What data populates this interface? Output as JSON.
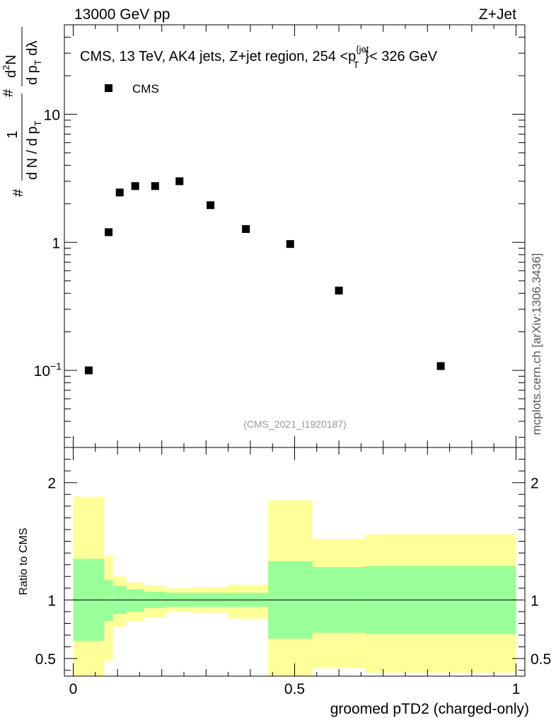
{
  "header": {
    "left": "13000 GeV pp",
    "right": "Z+Jet",
    "side_text": "mcplots.cern.ch [arXiv:1306.3436]"
  },
  "chart_data": [
    {
      "type": "scatter",
      "title": "CMS, 13 TeV, AK4 jets, Z+jet region, 254 <p_T^{jet}< 326 GeV",
      "title_parts": {
        "before": "CMS, 13 TeV, AK4 jets, Z+jet region, 254 <p",
        "sup": "{jet",
        "sub": "T",
        "after": "}< 326 GeV"
      },
      "ylabel_parts": {
        "lhs_numerator": "1",
        "lhs_denominator": "d N / d p",
        "lhs_sub": "T",
        "lhs_hash": "#",
        "hash2": "#",
        "rhs_numerator": "d",
        "rhs_numerator_sup": "2",
        "rhs_numerator_tail": "N",
        "rhs_denominator": "d p",
        "rhs_sub": "T",
        "rhs_tail": " dλ"
      },
      "yscale": "log",
      "ylim": [
        0.025,
        50
      ],
      "xlim": [
        -0.02,
        1.02
      ],
      "ytick_labels": [
        {
          "value": 0.1,
          "base": "10",
          "exp": "−1"
        },
        {
          "value": 1,
          "base": "1",
          "exp": ""
        },
        {
          "value": 10,
          "base": "10",
          "exp": ""
        }
      ],
      "annotation": "(CMS_2021_I1920187)",
      "legend": {
        "placement": "top-left",
        "entries": [
          "CMS"
        ]
      },
      "series": [
        {
          "name": "CMS",
          "color": "#000000",
          "x": [
            0.035,
            0.08,
            0.105,
            0.14,
            0.185,
            0.24,
            0.31,
            0.39,
            0.49,
            0.6,
            0.83
          ],
          "y": [
            0.1,
            1.2,
            2.45,
            2.75,
            2.75,
            3.0,
            1.95,
            1.27,
            0.97,
            0.42,
            0.108
          ]
        }
      ]
    },
    {
      "type": "area",
      "ylabel": "Ratio to CMS",
      "xlabel": "groomed pTD2 (charged-only)",
      "xlim": [
        -0.02,
        1.02
      ],
      "ylim": [
        0.35,
        2.3
      ],
      "xtick_labels": [
        "0",
        "0.5",
        "1"
      ],
      "xticks": [
        0,
        0.5,
        1
      ],
      "ytick_labels": [
        "0.5",
        "1",
        "2"
      ],
      "yticks": [
        0.5,
        1,
        2
      ],
      "reference_line": 1,
      "bins": [
        0,
        0.07,
        0.09,
        0.12,
        0.16,
        0.21,
        0.27,
        0.35,
        0.44,
        0.54,
        0.66,
        1.0
      ],
      "green_band": {
        "color": "#99ff99",
        "upper": [
          1.35,
          1.17,
          1.12,
          1.09,
          1.07,
          1.06,
          1.06,
          1.06,
          1.33,
          1.28,
          1.29
        ],
        "lower": [
          0.65,
          0.82,
          0.88,
          0.9,
          0.93,
          0.94,
          0.94,
          0.94,
          0.67,
          0.72,
          0.71
        ]
      },
      "yellow_band": {
        "color": "#ffff99",
        "upper": [
          1.88,
          1.38,
          1.2,
          1.15,
          1.12,
          1.1,
          1.11,
          1.13,
          1.85,
          1.52,
          1.56
        ],
        "lower": [
          0.35,
          0.48,
          0.77,
          0.82,
          0.85,
          0.9,
          0.89,
          0.84,
          0.35,
          0.42,
          0.38
        ]
      }
    }
  ]
}
